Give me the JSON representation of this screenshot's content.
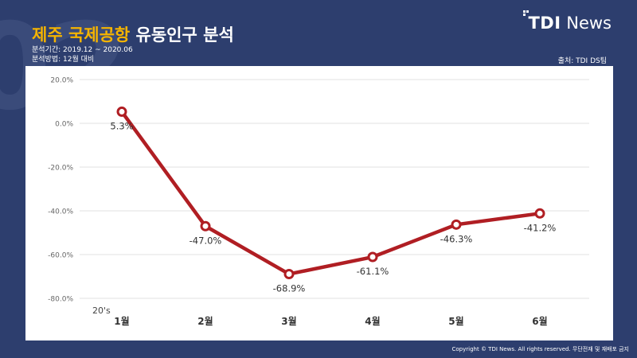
{
  "header": {
    "title_highlight": "제주 국제공항",
    "title_rest": "유동인구 분석",
    "period": "분석기간: 2019.12 ~ 2020.06",
    "method": "분석방법: 12월 대비",
    "source": "출처: TDI DS팀",
    "logo_bold": "TDI",
    "logo_light": "News",
    "copyright": "Copyright © TDI News. All rights reserved. 무단전재 및 재배포 금지"
  },
  "colors": {
    "background": "#2d3e6e",
    "accent": "#f5b400",
    "line": "#b01e23"
  },
  "chart_data": {
    "type": "line",
    "categories": [
      "1월",
      "2월",
      "3월",
      "4월",
      "5월",
      "6월"
    ],
    "series": [
      {
        "name": "20's",
        "values": [
          5.3,
          -47.0,
          -68.9,
          -61.1,
          -46.3,
          -41.2
        ]
      }
    ],
    "data_labels": [
      "5.3%",
      "-47.0%",
      "-68.9%",
      "-61.1%",
      "-46.3%",
      "-41.2%"
    ],
    "y_ticks": [
      20,
      0,
      -20,
      -40,
      -60,
      -80
    ],
    "y_tick_labels": [
      "20.0%",
      "0.0%",
      "-20.0%",
      "-40.0%",
      "-60.0%",
      "-80.0%"
    ],
    "ylim": [
      -80,
      20
    ],
    "grid": true,
    "series_label": "20's"
  }
}
